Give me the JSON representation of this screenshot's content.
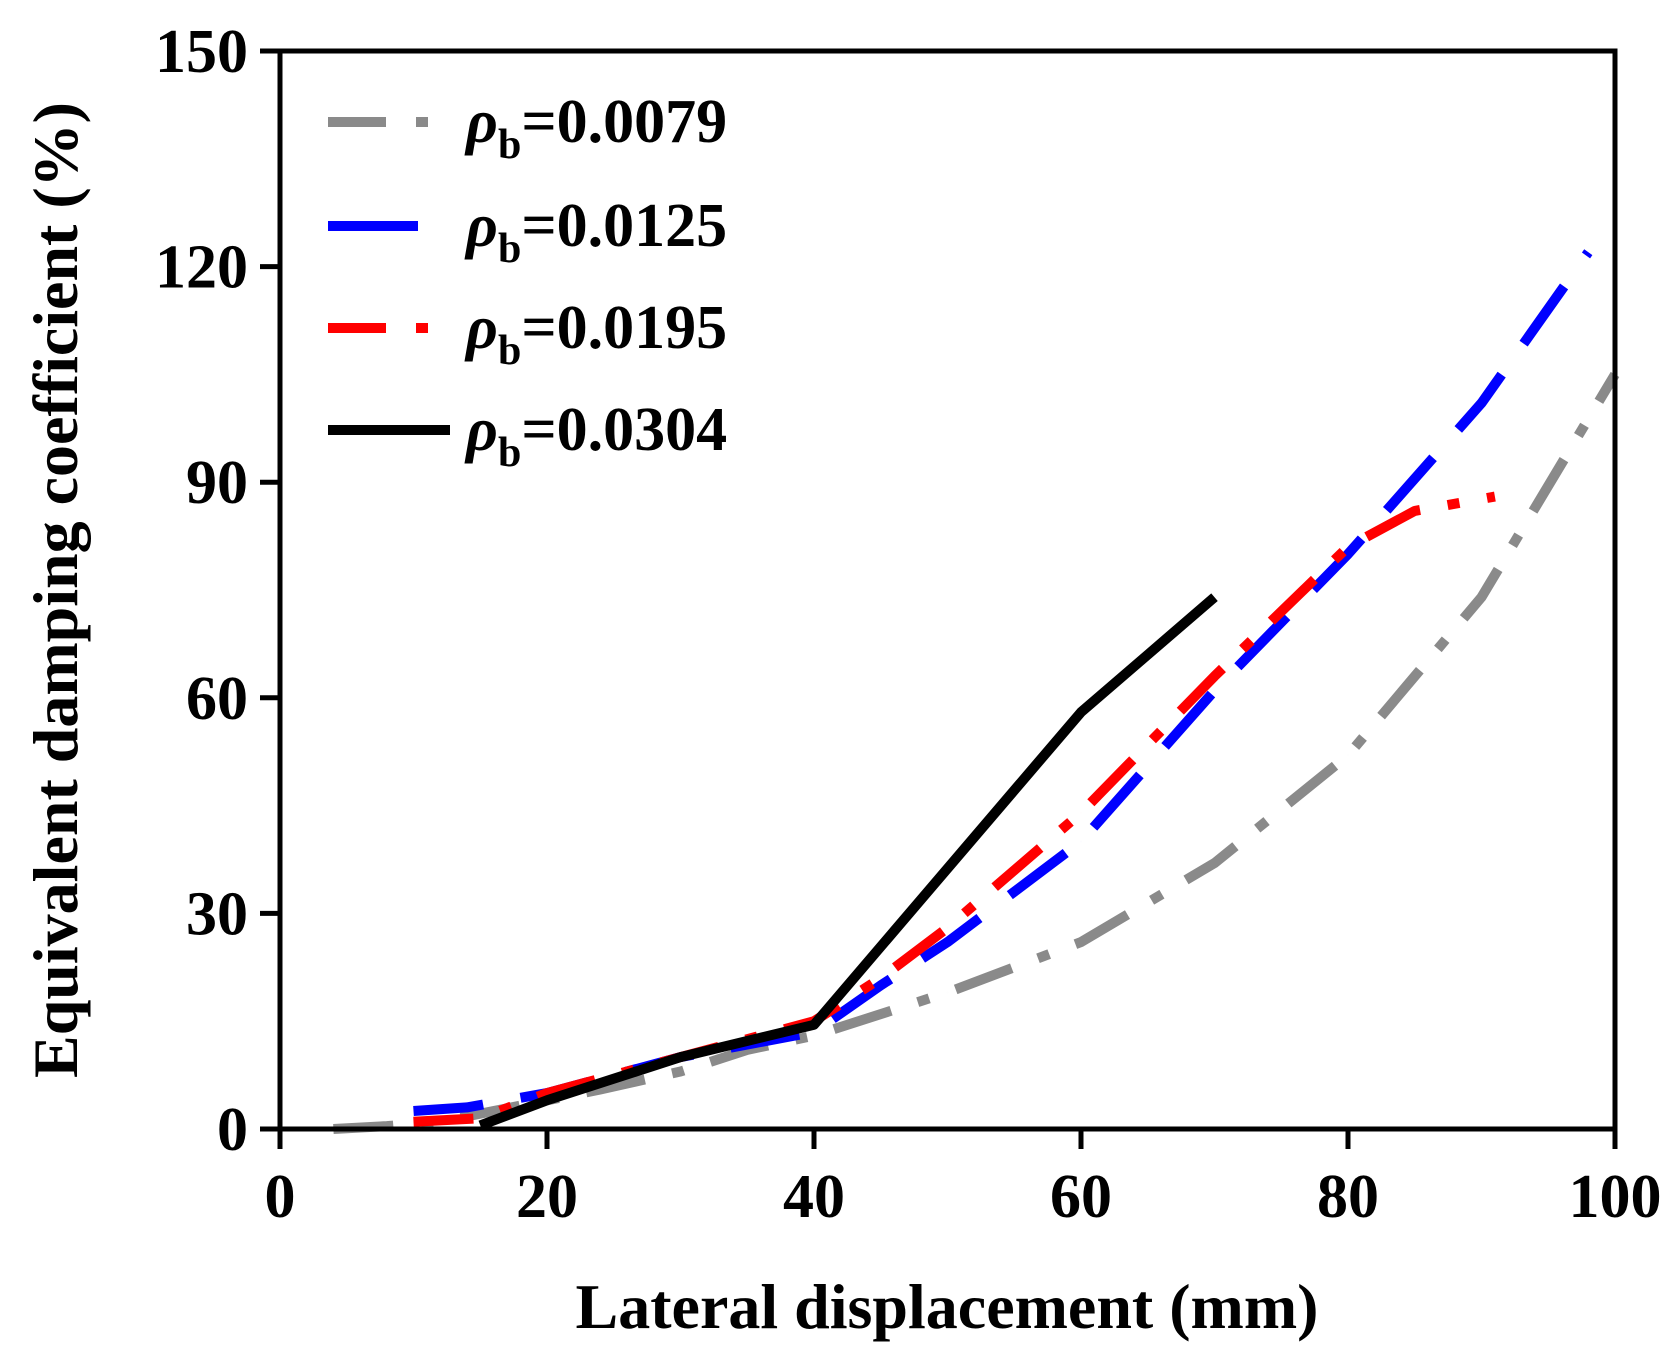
{
  "chart_data": {
    "type": "line",
    "title": "",
    "xlabel": "Lateral displacement (mm)",
    "ylabel": "Equivalent damping coefficient (%)",
    "xlim": [
      0,
      100
    ],
    "ylim": [
      0,
      150
    ],
    "xticks": [
      "0",
      "20",
      "40",
      "60",
      "80",
      "100"
    ],
    "yticks": [
      "0",
      "30",
      "60",
      "90",
      "120",
      "150"
    ],
    "xtick_values": [
      0,
      20,
      40,
      60,
      80,
      100
    ],
    "ytick_values": [
      0,
      30,
      60,
      90,
      120,
      150
    ],
    "grid": false,
    "legend_position": "top-left",
    "series": [
      {
        "name": "0.0079",
        "legend_prefix": "ρ",
        "legend_subscript": "b",
        "legend_eq": "=",
        "color": "#8a8a8a",
        "dash": "dash-dot",
        "x": [
          4,
          8,
          12,
          16,
          20,
          24,
          30,
          35,
          40,
          50,
          60,
          70,
          80,
          90,
          100
        ],
        "y": [
          0,
          0.4,
          1,
          2.5,
          4,
          5.5,
          8,
          11,
          13,
          19,
          26,
          37,
          52,
          74,
          105
        ]
      },
      {
        "name": "0.0125",
        "legend_prefix": "ρ",
        "legend_subscript": "b",
        "legend_eq": "=",
        "color": "#0000ff",
        "dash": "dash",
        "x": [
          10,
          14,
          20,
          30,
          40,
          45,
          50,
          60,
          70,
          80,
          90,
          98
        ],
        "y": [
          2.5,
          3,
          5,
          10,
          13.5,
          20,
          26,
          40,
          61,
          80,
          101,
          122
        ]
      },
      {
        "name": "0.0195",
        "legend_prefix": "ρ",
        "legend_subscript": "b",
        "legend_eq": "=",
        "color": "#ff0000",
        "dash": "dash-dot",
        "x": [
          10,
          15,
          20,
          30,
          40,
          45,
          50,
          60,
          70,
          80,
          85,
          91
        ],
        "y": [
          1,
          1.5,
          5,
          10,
          15,
          21,
          28,
          44,
          63,
          81,
          86,
          88
        ]
      },
      {
        "name": "0.0304",
        "legend_prefix": "ρ",
        "legend_subscript": "b",
        "legend_eq": "=",
        "color": "#000000",
        "dash": "solid",
        "x": [
          15,
          20,
          30,
          40,
          60,
          70
        ],
        "y": [
          0.5,
          4,
          10,
          14.5,
          58,
          74
        ]
      }
    ]
  }
}
